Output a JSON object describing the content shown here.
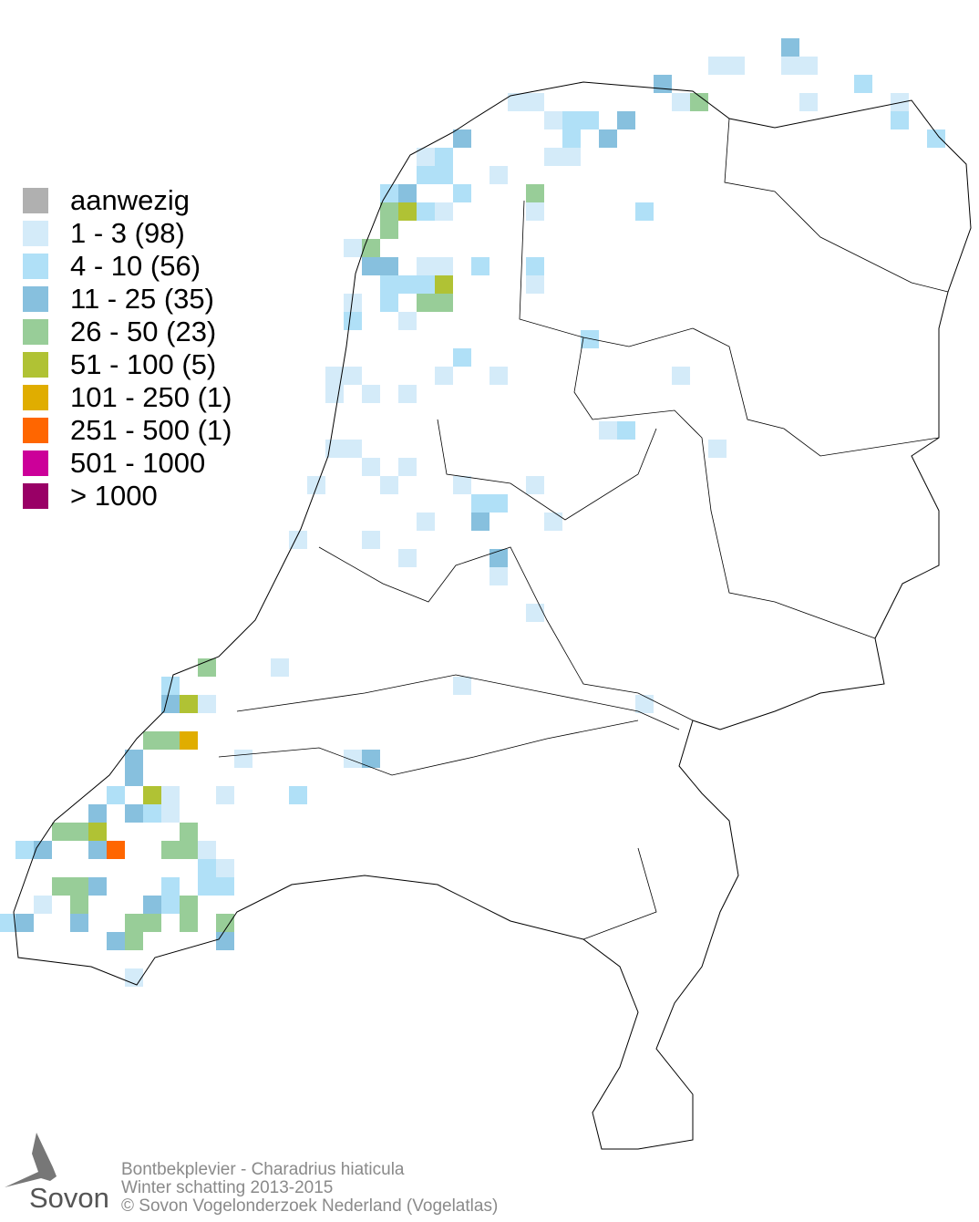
{
  "legend": {
    "items": [
      {
        "label": "aanwezig",
        "color": "#b0b0b0"
      },
      {
        "label": "1 - 3 (98)",
        "color": "#d4ebf9"
      },
      {
        "label": "4 - 10 (56)",
        "color": "#b0e0f7"
      },
      {
        "label": "11 - 25 (35)",
        "color": "#87c0de"
      },
      {
        "label": "26 - 50 (23)",
        "color": "#98cd98"
      },
      {
        "label": "51 - 100 (5)",
        "color": "#b0c234"
      },
      {
        "label": "101 - 250 (1)",
        "color": "#e0ad00"
      },
      {
        "label": "251 - 500 (1)",
        "color": "#ff6600"
      },
      {
        "label": "501 - 1000",
        "color": "#cc0099"
      },
      {
        "label": "> 1000",
        "color": "#990066"
      }
    ]
  },
  "footer": {
    "species": "Bontbekplevier - Charadrius hiaticula",
    "period": "Winter schatting 2013-2015",
    "copyright": "© Sovon Vogelonderzoek Nederland (Vogelatlas)"
  },
  "logo": {
    "text": "Sovon"
  }
}
